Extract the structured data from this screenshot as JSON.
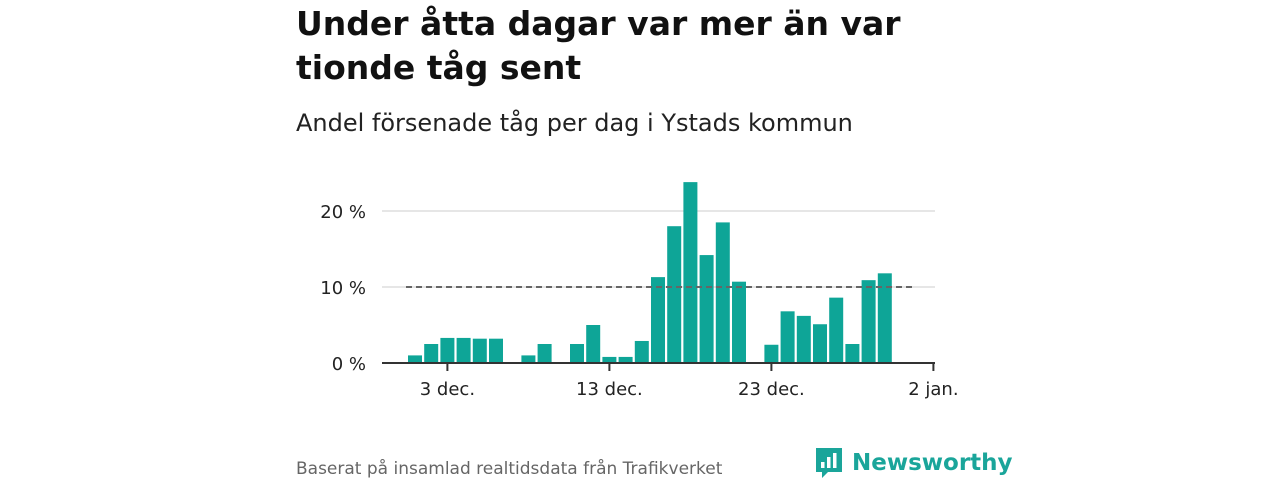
{
  "header": {
    "title": "Under åtta dagar var mer än var tionde tåg sent",
    "subtitle": "Andel försenade tåg per dag i Ystads kommun"
  },
  "footer": {
    "source": "Baserat på insamlad realtidsdata från Trafikverket",
    "brand": "Newsworthy"
  },
  "colors": {
    "bar": "#0ea597",
    "grid": "#dddddd",
    "reference_line": "#666666",
    "axis": "#333333",
    "brand": "#1aa59a"
  },
  "chart_data": {
    "type": "bar",
    "title": "Under åtta dagar var mer än var tionde tåg sent",
    "subtitle": "Andel försenade tåg per dag i Ystads kommun",
    "xlabel": "",
    "ylabel": "",
    "ylim": [
      0,
      24
    ],
    "yticks": [
      {
        "value": 0,
        "label": "0 %"
      },
      {
        "value": 10,
        "label": "10 %"
      },
      {
        "value": 20,
        "label": "20 %"
      }
    ],
    "xticks": [
      {
        "date": "2022-12-03",
        "label": "3 dec."
      },
      {
        "date": "2022-12-13",
        "label": "13 dec."
      },
      {
        "date": "2022-12-23",
        "label": "23 dec."
      },
      {
        "date": "2023-01-02",
        "label": "2 jan."
      }
    ],
    "grid": true,
    "reference_line": {
      "value": 10,
      "style": "dashed"
    },
    "x": [
      "2022-12-01",
      "2022-12-02",
      "2022-12-03",
      "2022-12-04",
      "2022-12-05",
      "2022-12-06",
      "2022-12-07",
      "2022-12-08",
      "2022-12-09",
      "2022-12-10",
      "2022-12-11",
      "2022-12-12",
      "2022-12-13",
      "2022-12-14",
      "2022-12-15",
      "2022-12-16",
      "2022-12-17",
      "2022-12-18",
      "2022-12-19",
      "2022-12-20",
      "2022-12-21",
      "2022-12-22",
      "2022-12-23",
      "2022-12-24",
      "2022-12-25",
      "2022-12-26",
      "2022-12-27",
      "2022-12-28",
      "2022-12-29",
      "2022-12-30",
      "2022-12-31"
    ],
    "series": [
      {
        "values": [
          1.0,
          2.5,
          3.3,
          3.3,
          3.2,
          3.2,
          null,
          1.0,
          2.5,
          null,
          2.5,
          5.0,
          0.8,
          0.8,
          2.9,
          11.3,
          18.0,
          23.8,
          14.2,
          18.5,
          10.7,
          null,
          2.4,
          6.8,
          6.2,
          5.1,
          8.6,
          2.5,
          10.9,
          11.8,
          null
        ]
      }
    ]
  }
}
